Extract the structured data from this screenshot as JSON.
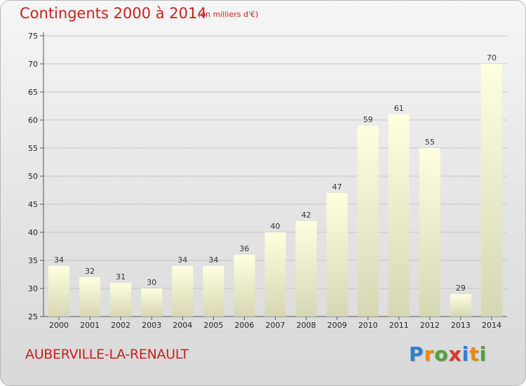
{
  "header": {
    "title": "Contingents 2000 à 2014",
    "subtitle": "(en milliers d'€)"
  },
  "footer": {
    "commune": "AUBERVILLE-LA-RENAULT",
    "logo_letters": [
      "P",
      "r",
      "o",
      "x",
      "i",
      "t",
      "i"
    ],
    "logo_colors": [
      "#2f7fd0",
      "#e98a14",
      "#4fa23a",
      "#d63a2b",
      "#2f7fd0",
      "#e98a14",
      "#4fa23a"
    ]
  },
  "chart_data": {
    "type": "bar",
    "title": "Contingents 2000 à 2014",
    "subtitle": "(en milliers d'€)",
    "categories": [
      "2000",
      "2001",
      "2002",
      "2003",
      "2004",
      "2005",
      "2006",
      "2007",
      "2008",
      "2009",
      "2010",
      "2011",
      "2012",
      "2013",
      "2014"
    ],
    "values": [
      34,
      32,
      31,
      30,
      34,
      34,
      36,
      40,
      42,
      47,
      59,
      61,
      55,
      29,
      70
    ],
    "ylim": [
      25,
      75
    ],
    "yticks": [
      25,
      30,
      35,
      40,
      45,
      50,
      55,
      60,
      65,
      70,
      75
    ],
    "xlabel": "",
    "ylabel": "",
    "grid": true,
    "bar_color_top": "#ffffe0",
    "bar_color_bottom": "#d7d7b4"
  }
}
